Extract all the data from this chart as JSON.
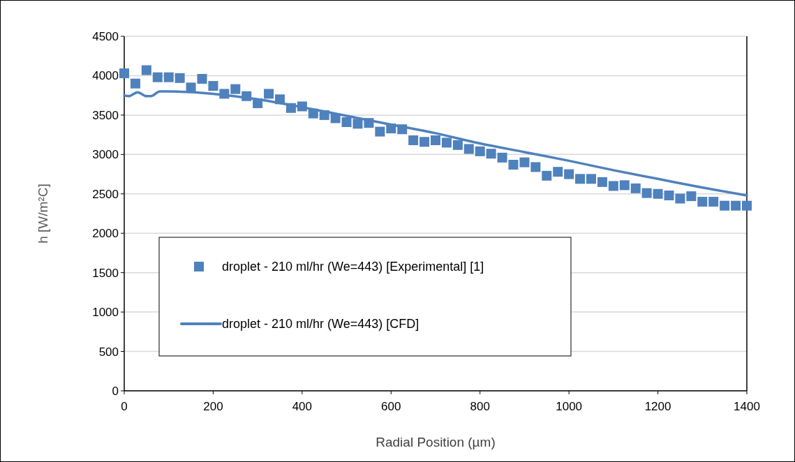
{
  "chart_data": {
    "type": "scatter",
    "xlabel": "Radial Position (µm)",
    "ylabel": "h [W/m²C]",
    "xlim": [
      0,
      1400
    ],
    "xticks": [
      0,
      200,
      400,
      600,
      800,
      1000,
      1200,
      1400
    ],
    "ylim": [
      0,
      4500
    ],
    "yticks": [
      0,
      500,
      1000,
      1500,
      2000,
      2500,
      3000,
      3500,
      4000,
      4500
    ],
    "grid": "y",
    "legend": "bottom left",
    "series": [
      {
        "name": "droplet - 210 ml/hr (We=443) [Experimental] [1]",
        "marker": "square",
        "color": "#4f81bd",
        "x": [
          0,
          25,
          50,
          75,
          100,
          125,
          150,
          175,
          200,
          225,
          250,
          275,
          300,
          325,
          350,
          375,
          400,
          425,
          450,
          475,
          500,
          525,
          550,
          575,
          600,
          625,
          650,
          675,
          700,
          725,
          750,
          775,
          800,
          825,
          850,
          875,
          900,
          925,
          950,
          975,
          1000,
          1025,
          1050,
          1075,
          1100,
          1125,
          1150,
          1175,
          1200,
          1225,
          1250,
          1275,
          1300,
          1325,
          1350,
          1375,
          1400
        ],
        "values": [
          4030,
          3900,
          4070,
          3980,
          3980,
          3970,
          3850,
          3960,
          3870,
          3770,
          3830,
          3740,
          3650,
          3770,
          3700,
          3590,
          3610,
          3520,
          3500,
          3460,
          3410,
          3390,
          3400,
          3290,
          3330,
          3320,
          3180,
          3160,
          3180,
          3150,
          3120,
          3070,
          3040,
          3010,
          2960,
          2870,
          2900,
          2840,
          2730,
          2780,
          2750,
          2690,
          2690,
          2650,
          2600,
          2610,
          2570,
          2510,
          2500,
          2480,
          2440,
          2470,
          2400,
          2400,
          2350,
          2350,
          2350
        ]
      },
      {
        "name": "droplet - 210 ml/hr (We=443) [CFD]",
        "type": "line",
        "marker": "none",
        "line_style": "solid",
        "color": "#4f81bd",
        "x": [
          0,
          10,
          30,
          50,
          60,
          80,
          100,
          200,
          300,
          400,
          500,
          600,
          700,
          800,
          900,
          1000,
          1100,
          1200,
          1300,
          1400
        ],
        "values": [
          3750,
          3740,
          3790,
          3740,
          3740,
          3800,
          3800,
          3770,
          3700,
          3600,
          3490,
          3380,
          3270,
          3140,
          3030,
          2920,
          2800,
          2690,
          2580,
          2480
        ]
      }
    ]
  }
}
